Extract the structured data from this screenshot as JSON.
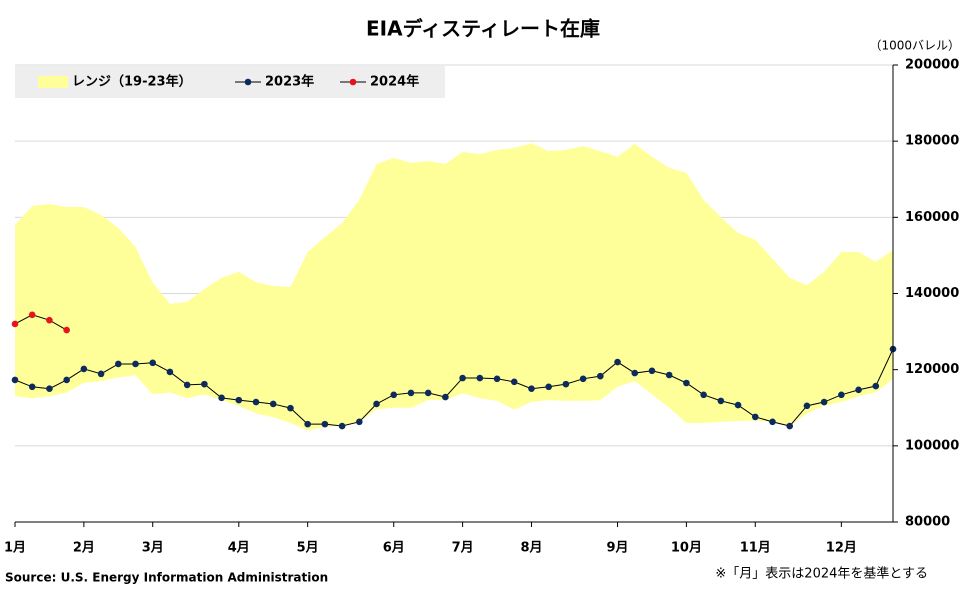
{
  "chart_data": {
    "type": "line",
    "title": "EIAディスティレート在庫",
    "y_axis_label": "（1000バレル）",
    "source": "Source: U.S. Energy Information Administration",
    "note": "※「月」表示は2024年を基準とする",
    "categories": [
      "1月",
      null,
      null,
      null,
      "2月",
      null,
      null,
      null,
      "3月",
      null,
      null,
      null,
      null,
      "4月",
      null,
      null,
      null,
      "5月",
      null,
      null,
      null,
      null,
      "6月",
      null,
      null,
      null,
      "7月",
      null,
      null,
      null,
      "8月",
      null,
      null,
      null,
      null,
      "9月",
      null,
      null,
      null,
      "10月",
      null,
      null,
      null,
      "11月",
      null,
      null,
      null,
      null,
      "12月",
      null,
      null,
      null
    ],
    "ylim": [
      80000,
      200000
    ],
    "yticks": [
      80000,
      100000,
      120000,
      140000,
      160000,
      180000,
      200000
    ],
    "grid": true,
    "legend": "top-left",
    "range": {
      "name": "レンジ（19-23年）",
      "color": "#ffff99",
      "high": [
        158000,
        163000,
        163500,
        162700,
        162700,
        160600,
        157200,
        152200,
        142800,
        137300,
        137800,
        141200,
        144100,
        145700,
        143000,
        142000,
        141700,
        150900,
        154800,
        158500,
        164600,
        174000,
        175600,
        174300,
        174800,
        174000,
        177200,
        176600,
        177700,
        178200,
        179500,
        177400,
        177700,
        178700,
        177400,
        175900,
        179300,
        175900,
        173000,
        171700,
        164600,
        160100,
        155900,
        154100,
        149100,
        144100,
        142200,
        145700,
        150900,
        150900,
        148300,
        151400
      ],
      "low": [
        113000,
        112500,
        113000,
        114000,
        116500,
        117000,
        118000,
        118500,
        113500,
        114000,
        112500,
        113500,
        112000,
        110500,
        108500,
        107500,
        106000,
        104000,
        105000,
        105200,
        106300,
        109500,
        110000,
        110000,
        112000,
        112000,
        113800,
        112500,
        111800,
        109500,
        111500,
        112000,
        111800,
        111800,
        112000,
        115500,
        117000,
        113500,
        110000,
        106000,
        106000,
        106300,
        106500,
        106600,
        106300,
        105200,
        108500,
        110500,
        111500,
        113000,
        114000,
        117500
      ]
    },
    "series": [
      {
        "name": "2023年",
        "color": "#0d2a5c",
        "values": [
          117300,
          115500,
          115000,
          117300,
          120200,
          118900,
          121500,
          121500,
          121800,
          119400,
          116000,
          116200,
          112600,
          112000,
          111500,
          111000,
          109900,
          105700,
          105700,
          105200,
          106300,
          111000,
          113400,
          113900,
          113900,
          112800,
          117800,
          117800,
          117600,
          116800,
          115000,
          115500,
          116200,
          117600,
          118300,
          122000,
          119100,
          119700,
          118600,
          116500,
          113400,
          111800,
          110700,
          107600,
          106300,
          105200,
          110500,
          111500,
          113400,
          114700,
          115700,
          125400
        ]
      },
      {
        "name": "2024年",
        "color": "#e8141c",
        "values": [
          132000,
          134400,
          133000,
          130400,
          null,
          null,
          null,
          null,
          null,
          null,
          null,
          null,
          null,
          null,
          null,
          null,
          null,
          null,
          null,
          null,
          null,
          null,
          null,
          null,
          null,
          null,
          null,
          null,
          null,
          null,
          null,
          null,
          null,
          null,
          null,
          null,
          null,
          null,
          null,
          null,
          null,
          null,
          null,
          null,
          null,
          null,
          null,
          null,
          null,
          null,
          null,
          null
        ]
      }
    ]
  }
}
